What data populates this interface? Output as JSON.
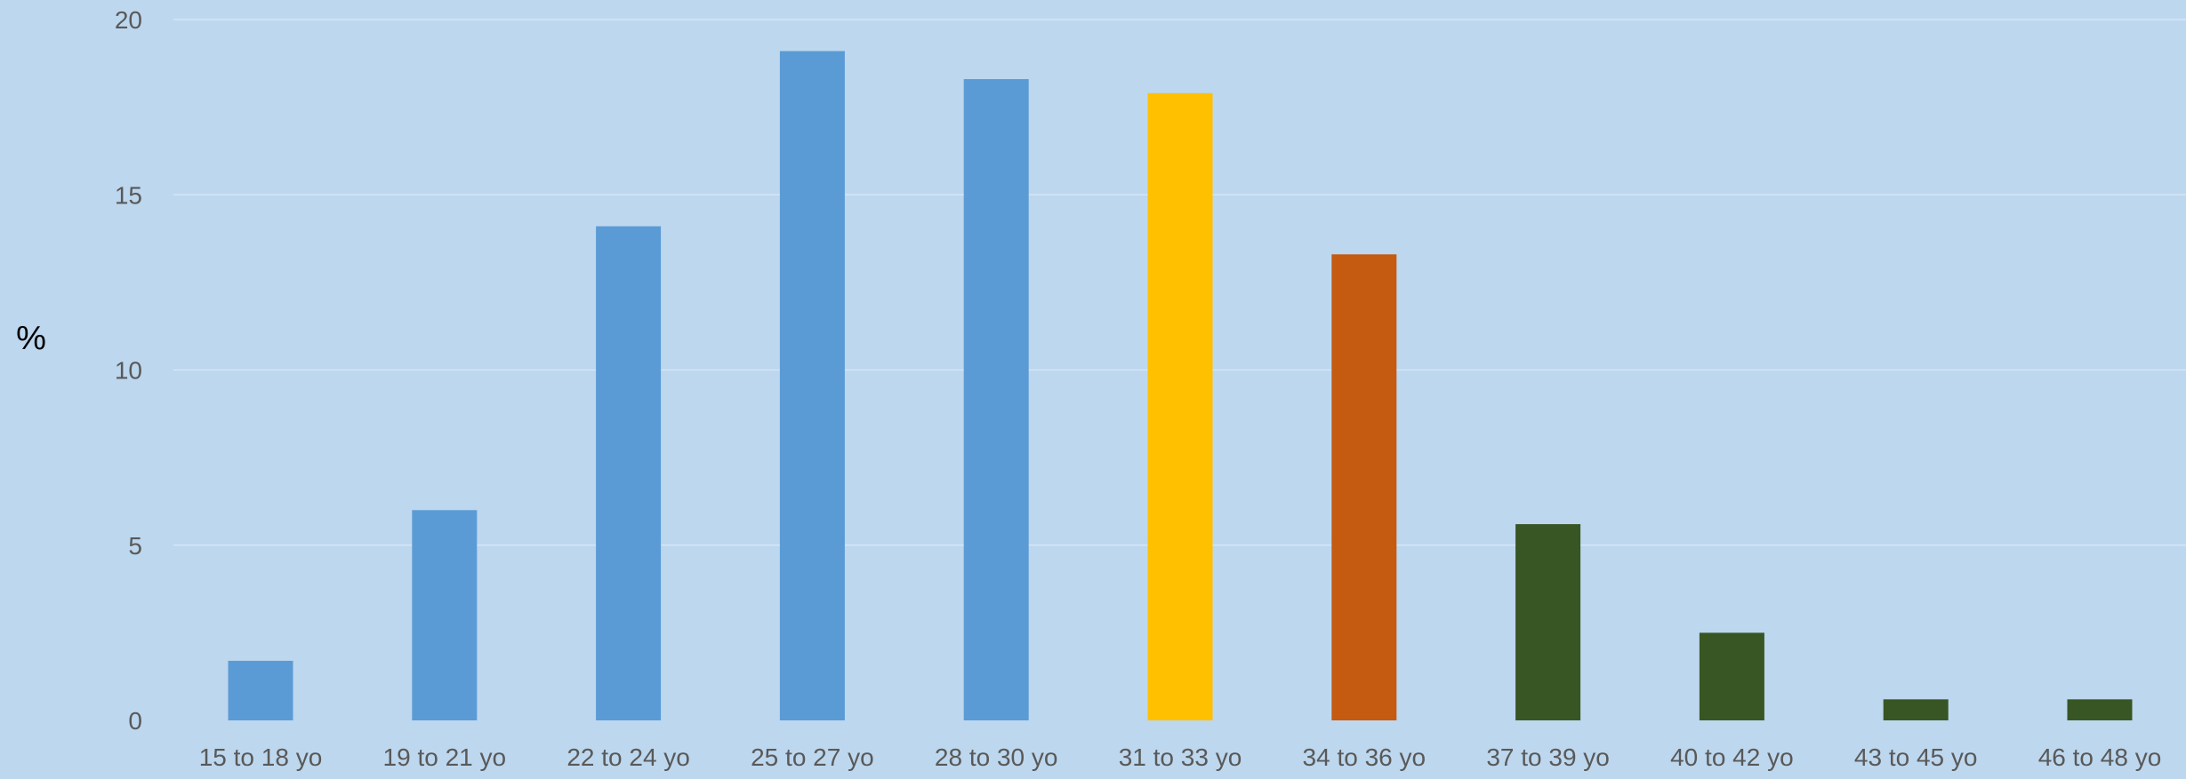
{
  "chart_data": {
    "type": "bar",
    "title": "",
    "xlabel": "",
    "ylabel": "%",
    "ylim": [
      0,
      20
    ],
    "yticks": [
      0,
      5,
      10,
      15,
      20
    ],
    "grid": true,
    "legend": "none",
    "categories": [
      "15 to 18 yo",
      "19 to 21 yo",
      "22 to 24 yo",
      "25 to 27 yo",
      "28 to 30 yo",
      "31 to 33 yo",
      "34 to 36 yo",
      "37 to 39 yo",
      "40 to 42 yo",
      "43 to 45 yo",
      "46 to 48 yo"
    ],
    "values": [
      1.7,
      6.0,
      14.1,
      19.1,
      18.3,
      17.9,
      13.3,
      5.6,
      2.5,
      0.6,
      0.6
    ],
    "bar_colors": [
      "#5B9BD5",
      "#5B9BD5",
      "#5B9BD5",
      "#5B9BD5",
      "#5B9BD5",
      "#FFC000",
      "#C55A11",
      "#375623",
      "#375623",
      "#375623",
      "#375623"
    ],
    "colors": {
      "background": "#BDD7EE",
      "gridline": "#D6E6F5",
      "tick_text": "#595959",
      "ylabel_text": "#000000"
    }
  }
}
